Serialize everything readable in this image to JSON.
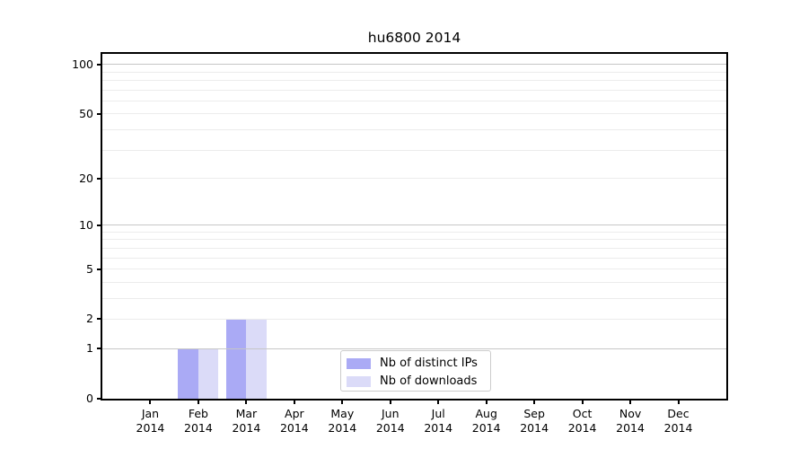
{
  "chart_data": {
    "type": "bar",
    "title": "hu6800 2014",
    "xlabel": "",
    "ylabel": "",
    "categories": [
      "Jan",
      "Feb",
      "Mar",
      "Apr",
      "May",
      "Jun",
      "Jul",
      "Aug",
      "Sep",
      "Oct",
      "Nov",
      "Dec"
    ],
    "category_year": "2014",
    "series": [
      {
        "name": "Nb of distinct IPs",
        "color": "#aaaaf5",
        "values": [
          0,
          1,
          2,
          0,
          0,
          0,
          0,
          0,
          0,
          0,
          0,
          0
        ]
      },
      {
        "name": "Nb of downloads",
        "color": "#dbdbf8",
        "values": [
          0,
          1,
          2,
          0,
          0,
          0,
          0,
          0,
          0,
          0,
          0,
          0
        ]
      }
    ],
    "yscale": "log10(1+x)",
    "ylim": [
      0,
      116
    ],
    "ytick_values": [
      0,
      1,
      2,
      5,
      10,
      20,
      50,
      100
    ],
    "ytick_labels": [
      "0",
      "1",
      "2",
      "5",
      "10",
      "20",
      "50",
      "100"
    ],
    "major_gridlines": [
      1,
      10,
      100
    ],
    "minor_gridlines": [
      2,
      3,
      4,
      5,
      6,
      7,
      8,
      9,
      20,
      30,
      40,
      50,
      60,
      70,
      80,
      90
    ],
    "grid": "horizontal",
    "legend_position": "lower center",
    "colors": {
      "axis": "#000000",
      "major_grid": "#c6c6c6",
      "minor_grid": "#ececec",
      "text": "#000000",
      "background": "#ffffff"
    }
  }
}
